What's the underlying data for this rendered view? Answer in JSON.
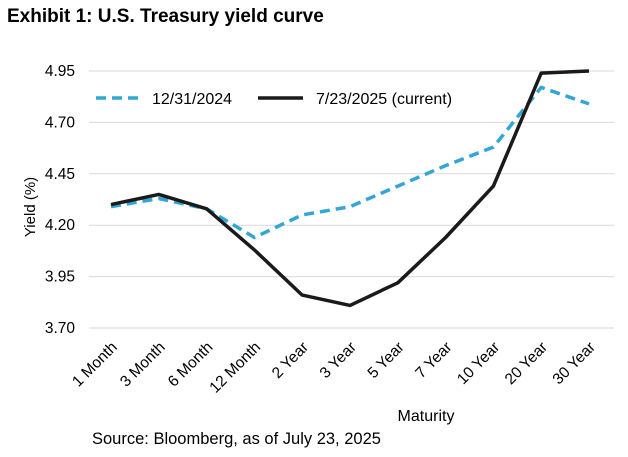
{
  "colors": {
    "series_dashed": "#33a6d6",
    "series_solid": "#1a1a1a",
    "gridline": "#d9d9d9",
    "text": "#000000"
  },
  "source": "Source: Bloomberg, as of July 23, 2025",
  "chart_data": {
    "type": "line",
    "title": "Exhibit 1: U.S. Treasury yield curve",
    "xlabel": "Maturity",
    "ylabel": "Yield (%)",
    "ylim": [
      3.7,
      4.95
    ],
    "yticks": [
      "3.70",
      "3.95",
      "4.20",
      "4.45",
      "4.70",
      "4.95"
    ],
    "grid": "horizontal",
    "legend_position": "top-left",
    "categories": [
      "1 Month",
      "3 Month",
      "6 Month",
      "12 Month",
      "2 Year",
      "3 Year",
      "5 Year",
      "7 Year",
      "10 Year",
      "20 Year",
      "30 Year"
    ],
    "series": [
      {
        "name": "12/31/2024",
        "style": "dashed",
        "color": "#33a6d6",
        "values": [
          4.29,
          4.33,
          4.28,
          4.14,
          4.25,
          4.29,
          4.39,
          4.49,
          4.58,
          4.87,
          4.79
        ]
      },
      {
        "name": "7/23/2025 (current)",
        "style": "solid",
        "color": "#1a1a1a",
        "values": [
          4.3,
          4.35,
          4.28,
          4.08,
          3.86,
          3.81,
          3.92,
          4.14,
          4.39,
          4.94,
          4.95
        ]
      }
    ]
  }
}
